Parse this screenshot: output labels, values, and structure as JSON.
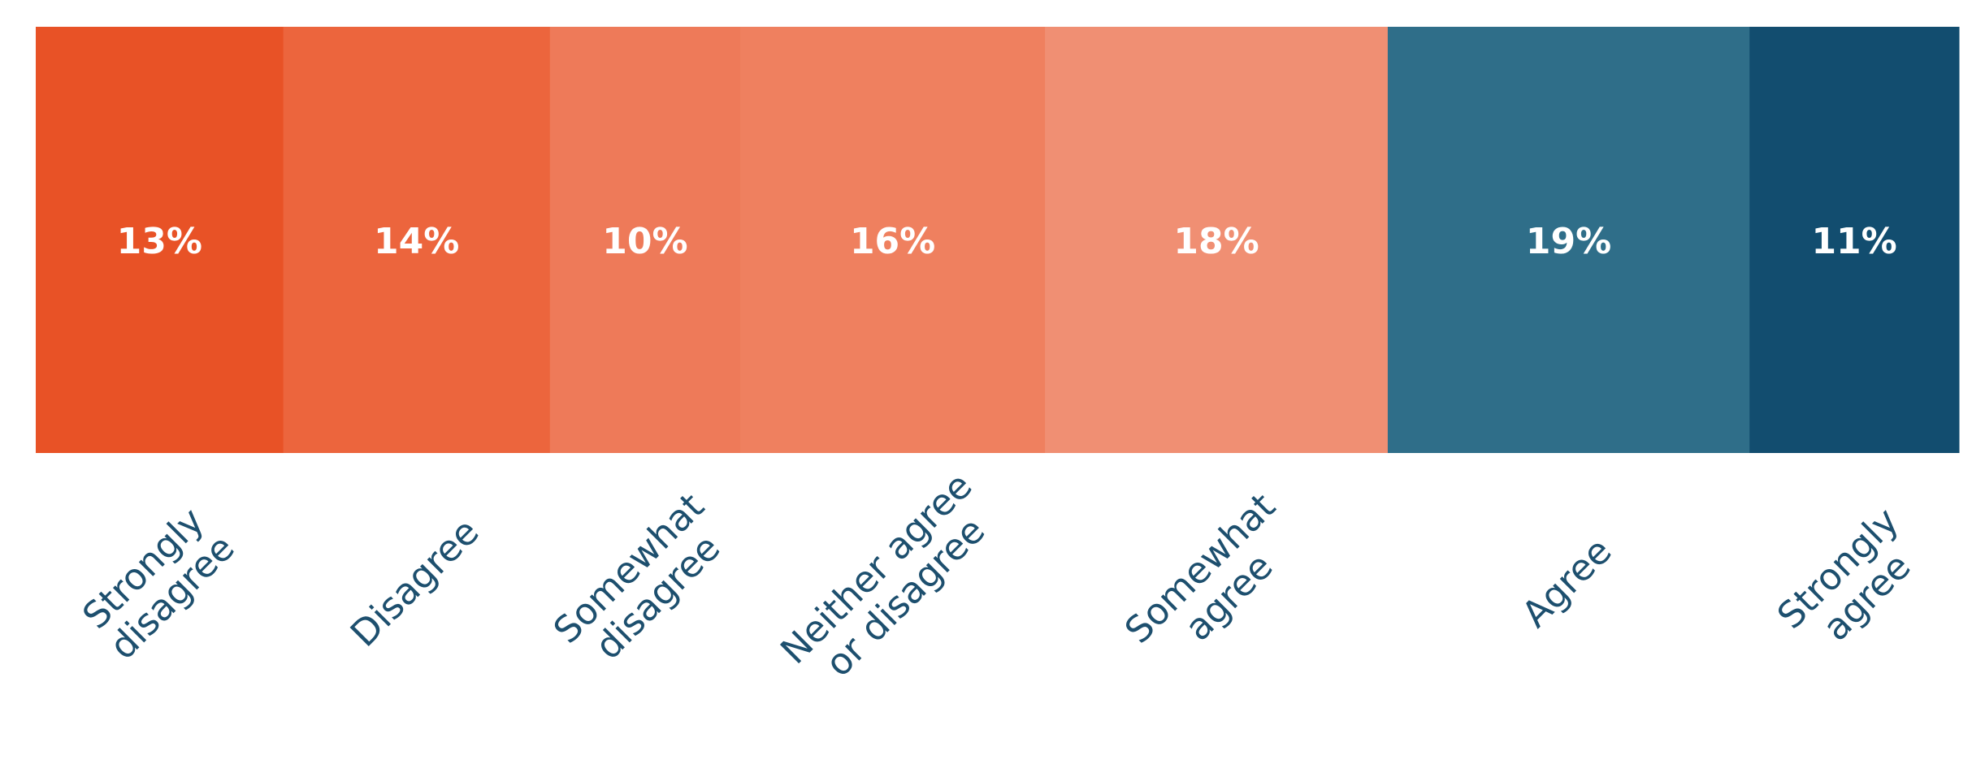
{
  "chart_data": {
    "type": "bar",
    "orientation": "horizontal-stacked-100",
    "title": "",
    "xlabel": "",
    "ylabel": "",
    "grid": false,
    "legend": "none",
    "categories": [
      "Strongly disagree",
      "Disagree",
      "Somewhat disagree",
      "Neither agree or disagree",
      "Somewhat agree",
      "Agree",
      "Strongly agree"
    ],
    "category_label_lines": [
      [
        "Strongly",
        "disagree"
      ],
      [
        "Disagree"
      ],
      [
        "Somewhat",
        "disagree"
      ],
      [
        "Neither agree",
        "or disagree"
      ],
      [
        "Somewhat",
        "agree"
      ],
      [
        "Agree"
      ],
      [
        "Strongly",
        "agree"
      ]
    ],
    "values": [
      13,
      14,
      10,
      16,
      18,
      19,
      11
    ],
    "value_labels": [
      "13%",
      "14%",
      "10%",
      "16%",
      "18%",
      "19%",
      "11%"
    ],
    "colors": [
      "#e85226",
      "#ec653d",
      "#ee7a59",
      "#ef805f",
      "#f08f73",
      "#2f6e89",
      "#124d6f"
    ],
    "label_color": "#1d4f6e",
    "value_label_color": "#ffffff"
  }
}
